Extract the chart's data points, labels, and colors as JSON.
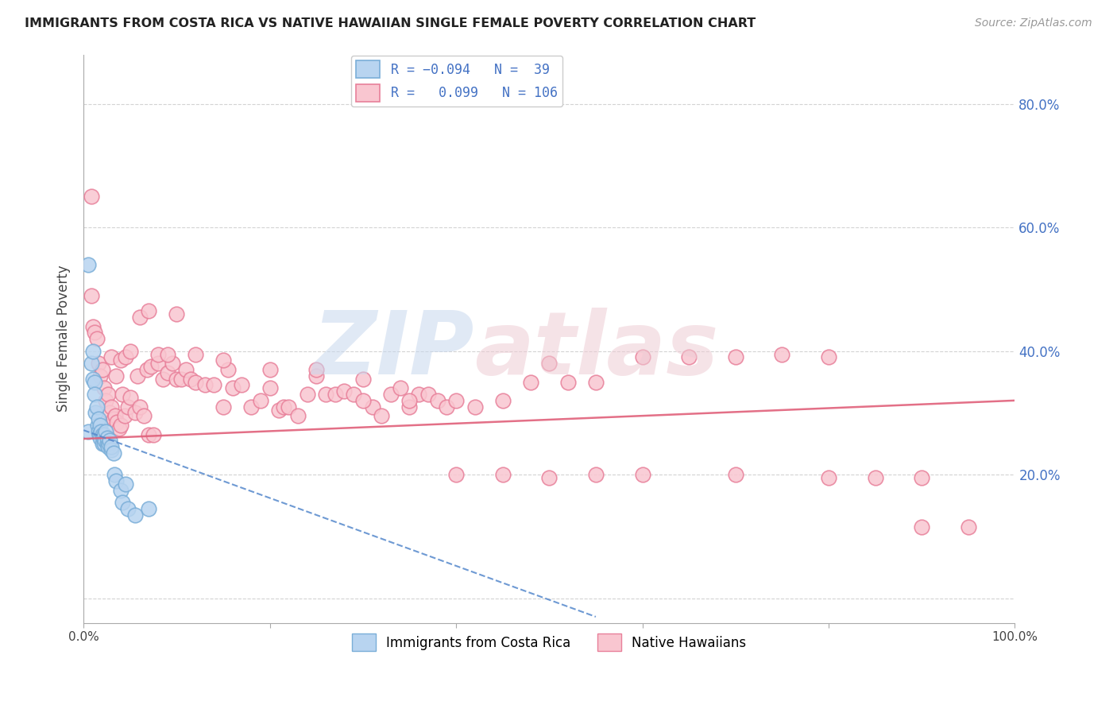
{
  "title": "IMMIGRANTS FROM COSTA RICA VS NATIVE HAWAIIAN SINGLE FEMALE POVERTY CORRELATION CHART",
  "source": "Source: ZipAtlas.com",
  "ylabel": "Single Female Poverty",
  "yticks": [
    0.0,
    0.2,
    0.4,
    0.6,
    0.8
  ],
  "ytick_labels": [
    "",
    "20.0%",
    "40.0%",
    "60.0%",
    "80.0%"
  ],
  "xlim": [
    0.0,
    1.0
  ],
  "ylim": [
    -0.04,
    0.88
  ],
  "blue_scatter_x": [
    0.005,
    0.005,
    0.008,
    0.01,
    0.01,
    0.012,
    0.012,
    0.013,
    0.014,
    0.015,
    0.016,
    0.016,
    0.017,
    0.018,
    0.018,
    0.019,
    0.02,
    0.02,
    0.021,
    0.022,
    0.022,
    0.023,
    0.024,
    0.025,
    0.025,
    0.026,
    0.027,
    0.028,
    0.03,
    0.03,
    0.032,
    0.033,
    0.035,
    0.04,
    0.042,
    0.045,
    0.048,
    0.055,
    0.07
  ],
  "blue_scatter_y": [
    0.54,
    0.27,
    0.38,
    0.4,
    0.355,
    0.35,
    0.33,
    0.3,
    0.31,
    0.28,
    0.27,
    0.29,
    0.265,
    0.26,
    0.28,
    0.27,
    0.265,
    0.25,
    0.26,
    0.25,
    0.265,
    0.255,
    0.27,
    0.25,
    0.26,
    0.245,
    0.25,
    0.255,
    0.24,
    0.245,
    0.235,
    0.2,
    0.19,
    0.175,
    0.155,
    0.185,
    0.145,
    0.135,
    0.145
  ],
  "pink_scatter_x": [
    0.008,
    0.01,
    0.012,
    0.014,
    0.016,
    0.018,
    0.02,
    0.022,
    0.024,
    0.026,
    0.028,
    0.03,
    0.032,
    0.034,
    0.036,
    0.038,
    0.04,
    0.042,
    0.044,
    0.048,
    0.05,
    0.055,
    0.058,
    0.06,
    0.065,
    0.068,
    0.07,
    0.072,
    0.075,
    0.08,
    0.085,
    0.09,
    0.095,
    0.1,
    0.105,
    0.11,
    0.115,
    0.12,
    0.13,
    0.14,
    0.15,
    0.155,
    0.16,
    0.17,
    0.18,
    0.19,
    0.2,
    0.21,
    0.215,
    0.22,
    0.23,
    0.24,
    0.25,
    0.26,
    0.27,
    0.28,
    0.29,
    0.3,
    0.31,
    0.32,
    0.33,
    0.34,
    0.35,
    0.36,
    0.37,
    0.38,
    0.39,
    0.4,
    0.42,
    0.45,
    0.48,
    0.5,
    0.52,
    0.55,
    0.6,
    0.65,
    0.7,
    0.75,
    0.8,
    0.85,
    0.9,
    0.03,
    0.035,
    0.04,
    0.045,
    0.05,
    0.06,
    0.07,
    0.08,
    0.09,
    0.1,
    0.12,
    0.15,
    0.2,
    0.25,
    0.3,
    0.35,
    0.4,
    0.45,
    0.5,
    0.55,
    0.6,
    0.7,
    0.8,
    0.9,
    0.95,
    0.008
  ],
  "pink_scatter_y": [
    0.49,
    0.44,
    0.43,
    0.42,
    0.38,
    0.36,
    0.37,
    0.34,
    0.32,
    0.33,
    0.3,
    0.31,
    0.29,
    0.295,
    0.285,
    0.275,
    0.28,
    0.33,
    0.295,
    0.31,
    0.325,
    0.3,
    0.36,
    0.31,
    0.295,
    0.37,
    0.265,
    0.375,
    0.265,
    0.38,
    0.355,
    0.365,
    0.38,
    0.355,
    0.355,
    0.37,
    0.355,
    0.35,
    0.345,
    0.345,
    0.31,
    0.37,
    0.34,
    0.345,
    0.31,
    0.32,
    0.34,
    0.305,
    0.31,
    0.31,
    0.295,
    0.33,
    0.36,
    0.33,
    0.33,
    0.335,
    0.33,
    0.355,
    0.31,
    0.295,
    0.33,
    0.34,
    0.31,
    0.33,
    0.33,
    0.32,
    0.31,
    0.32,
    0.31,
    0.32,
    0.35,
    0.38,
    0.35,
    0.35,
    0.39,
    0.39,
    0.39,
    0.395,
    0.39,
    0.195,
    0.195,
    0.39,
    0.36,
    0.385,
    0.39,
    0.4,
    0.455,
    0.465,
    0.395,
    0.395,
    0.46,
    0.395,
    0.385,
    0.37,
    0.37,
    0.32,
    0.32,
    0.2,
    0.2,
    0.195,
    0.2,
    0.2,
    0.2,
    0.195,
    0.115,
    0.115,
    0.65
  ],
  "blue_trend_x": [
    0.0,
    0.55
  ],
  "blue_trend_y": [
    0.272,
    -0.03
  ],
  "pink_trend_x": [
    0.0,
    1.0
  ],
  "pink_trend_y": [
    0.258,
    0.32
  ]
}
